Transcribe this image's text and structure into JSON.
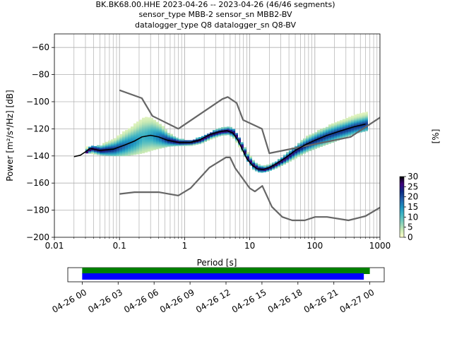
{
  "chart_data": {
    "type": "heatmap",
    "title_lines": [
      "BK.BK68.00.HHE   2023-04-26 -- 2023-04-26  (46/46 segments)",
      "sensor_type MBB-2 sensor_sn MBB2-BV",
      "datalogger_type Q8 datalogger_sn Q8-BV"
    ],
    "xlabel": "Period [s]",
    "ylabel": "Power [m²/s⁴/Hz] [dB]",
    "xscale": "log",
    "xlim": [
      0.01,
      1000
    ],
    "ylim": [
      -200,
      -50
    ],
    "grid": true,
    "x_ticks": [
      {
        "value": 0.01,
        "label": "0.01"
      },
      {
        "value": 0.1,
        "label": "0.1"
      },
      {
        "value": 1,
        "label": "1"
      },
      {
        "value": 10,
        "label": "10"
      },
      {
        "value": 100,
        "label": "100"
      },
      {
        "value": 1000,
        "label": "1000"
      }
    ],
    "y_ticks": [
      {
        "value": -200,
        "label": "−200"
      },
      {
        "value": -180,
        "label": "−180"
      },
      {
        "value": -160,
        "label": "−160"
      },
      {
        "value": -140,
        "label": "−140"
      },
      {
        "value": -120,
        "label": "−120"
      },
      {
        "value": -100,
        "label": "−100"
      },
      {
        "value": -80,
        "label": "−80"
      },
      {
        "value": -60,
        "label": "−60"
      }
    ],
    "colorbar": {
      "label": "[%]",
      "range": [
        0,
        30
      ],
      "ticks": [
        "0",
        "5",
        "10",
        "15",
        "20",
        "25",
        "30"
      ],
      "colors": [
        "#ffffcc",
        "#c7e9b4",
        "#7fcdbb",
        "#41b6c4",
        "#1d91c0",
        "#225ea8",
        "#0c2c84",
        "#3f007d",
        "#000000"
      ]
    },
    "series": [
      {
        "role": "high-noise-model",
        "color": "#666666",
        "x": [
          0.1,
          0.22,
          0.32,
          0.8,
          3.8,
          4.6,
          6.3,
          7.9,
          15.4,
          20,
          354,
          10000
        ],
        "y": [
          -91.5,
          -97.4,
          -110.5,
          -120,
          -98,
          -96.5,
          -101,
          -113.5,
          -120,
          -138,
          -126,
          -80
        ]
      },
      {
        "role": "low-noise-model",
        "color": "#666666",
        "x": [
          0.1,
          0.17,
          0.4,
          0.8,
          1.24,
          2.4,
          4.3,
          5,
          6,
          10,
          12,
          15.6,
          21.9,
          31.6,
          45,
          70,
          101,
          154,
          328,
          600,
          1000
        ],
        "y": [
          -168,
          -166.7,
          -166.7,
          -169.2,
          -163.7,
          -148.6,
          -141.1,
          -141.1,
          -149,
          -163.8,
          -166.2,
          -162.1,
          -177.5,
          -185,
          -187.5,
          -187.5,
          -185,
          -185,
          -187.5,
          -184.4,
          -178
        ]
      },
      {
        "role": "mode",
        "color": "#000000",
        "x": [
          0.02,
          0.025,
          0.03,
          0.035,
          0.05,
          0.08,
          0.12,
          0.17,
          0.22,
          0.3,
          0.4,
          0.55,
          0.8,
          1.2,
          1.7,
          2.5,
          3.5,
          4.5,
          5.5,
          6.5,
          7.5,
          9,
          11,
          13,
          16,
          20,
          25,
          35,
          50,
          70,
          100,
          150,
          250,
          400,
          600
        ],
        "y": [
          -140.5,
          -139.5,
          -137,
          -134.5,
          -136,
          -135,
          -132,
          -129,
          -126,
          -124.8,
          -126,
          -128.5,
          -130,
          -130,
          -128.2,
          -124,
          -122,
          -121.4,
          -123,
          -128,
          -134,
          -142,
          -147,
          -149.5,
          -150,
          -148.5,
          -146,
          -141.5,
          -136,
          -132,
          -128.5,
          -125,
          -121.5,
          -118.5,
          -116.5
        ]
      },
      {
        "role": "histogram-upper-edge",
        "color": "#b8e0a0",
        "x": [
          0.03,
          0.05,
          0.08,
          0.12,
          0.17,
          0.22,
          0.3,
          0.4,
          0.55,
          0.8,
          1.2,
          1.7,
          2.5,
          3.5,
          4.5,
          5.5,
          7,
          9,
          11,
          14,
          18,
          25,
          35,
          50,
          70,
          100,
          150,
          250,
          400,
          600
        ],
        "y": [
          -133.5,
          -132,
          -127,
          -121,
          -116,
          -111.5,
          -112,
          -116,
          -123,
          -127.5,
          -128.5,
          -126,
          -122,
          -119.5,
          -118.5,
          -120,
          -129,
          -138,
          -144,
          -147,
          -147,
          -144,
          -138,
          -132,
          -126,
          -122,
          -118,
          -114,
          -110,
          -108
        ]
      },
      {
        "role": "histogram-lower-edge",
        "color": "#b8e0a0",
        "x": [
          0.03,
          0.05,
          0.08,
          0.12,
          0.17,
          0.22,
          0.3,
          0.4,
          0.55,
          0.8,
          1.2,
          1.7,
          2.5,
          3.5,
          4.5,
          5.5,
          7,
          9,
          11,
          14,
          18,
          25,
          35,
          50,
          70,
          100,
          150,
          250,
          400,
          600
        ],
        "y": [
          -137.5,
          -139,
          -139.5,
          -139.5,
          -138.5,
          -137.5,
          -135.5,
          -134,
          -132.5,
          -132,
          -132,
          -130.5,
          -127,
          -124.5,
          -124,
          -127,
          -135,
          -144,
          -150,
          -152,
          -151,
          -148.5,
          -145,
          -141,
          -137,
          -134,
          -131,
          -127,
          -123,
          -121
        ]
      }
    ],
    "timeline": {
      "tick_labels": [
        "04-26 00",
        "04-26 03",
        "04-26 06",
        "04-26 09",
        "04-26 12",
        "04-26 15",
        "04-26 18",
        "04-26 21",
        "04-27 00"
      ],
      "tick_hours": [
        0,
        3,
        6,
        9,
        12,
        15,
        18,
        21,
        24
      ],
      "range_hours": [
        -1.2,
        25.2
      ],
      "bars": [
        {
          "color": "#008000",
          "start_hours": 0,
          "end_hours": 24.0
        },
        {
          "color": "#0000ff",
          "start_hours": 0,
          "end_hours": 23.5
        }
      ]
    }
  }
}
